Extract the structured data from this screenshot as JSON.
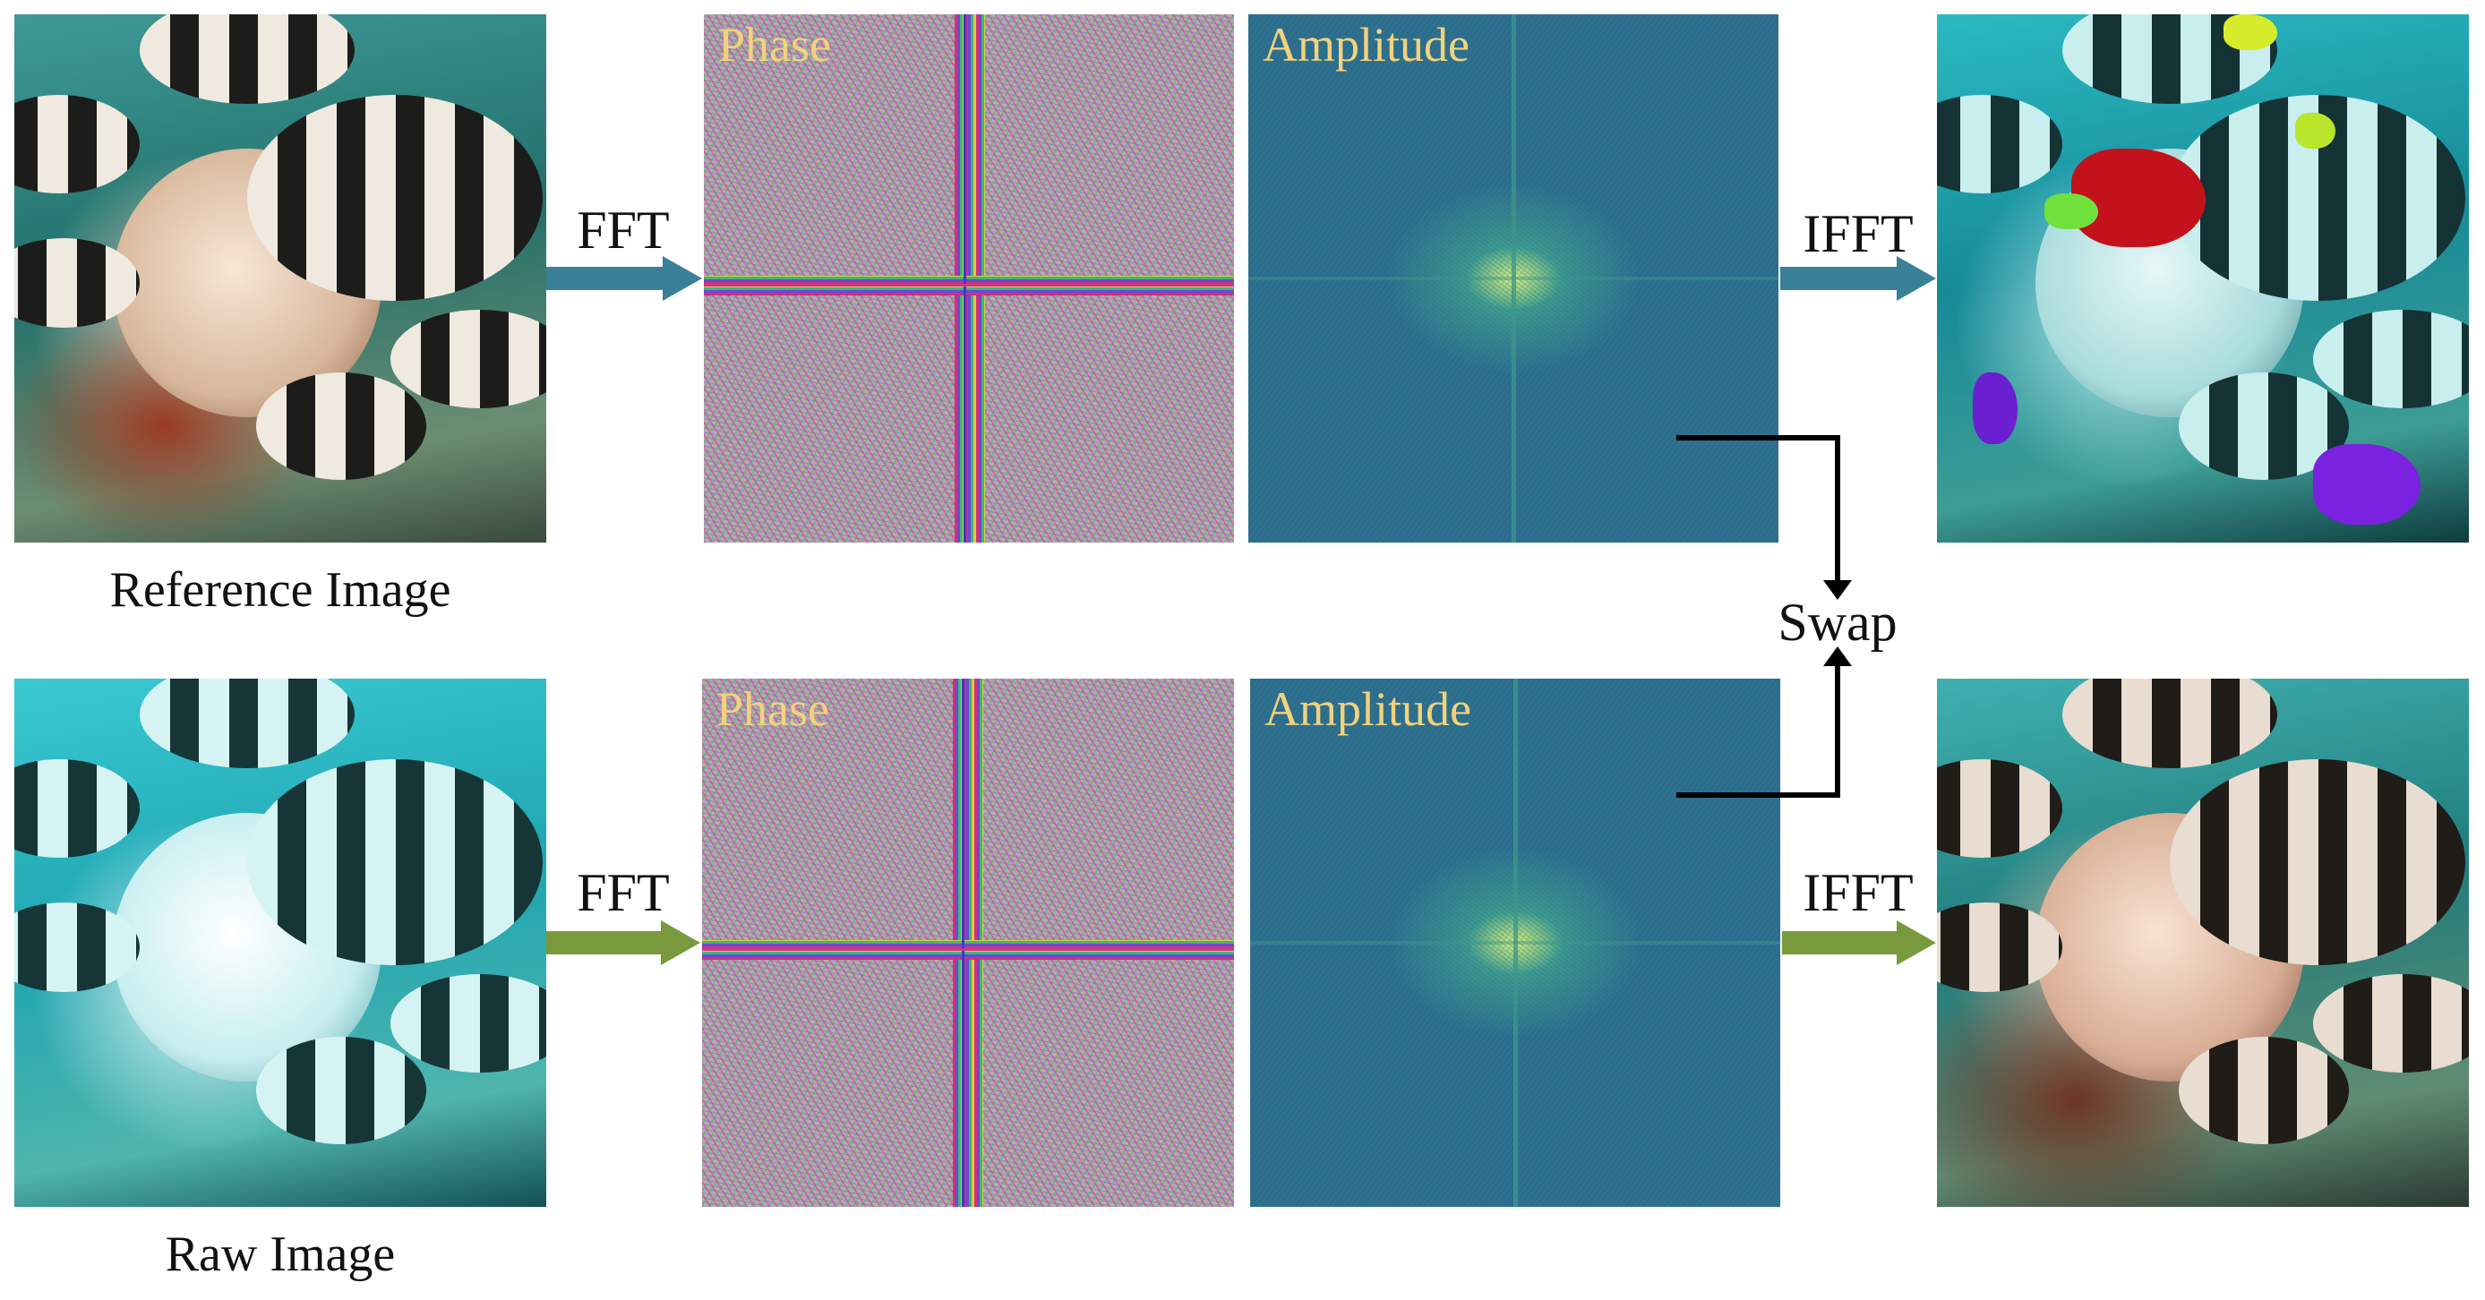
{
  "captions": {
    "reference": "Reference Image",
    "raw": "Raw Image"
  },
  "spectrum_labels": {
    "phase_top": "Phase",
    "amplitude_top": "Amplitude",
    "phase_bottom": "Phase",
    "amplitude_bottom": "Amplitude"
  },
  "arrow_labels": {
    "fft_top": "FFT",
    "ifft_top": "IFFT",
    "fft_bottom": "FFT",
    "ifft_bottom": "IFFT",
    "swap": "Swap"
  },
  "colors": {
    "top_arrow": "#3a8098",
    "bottom_arrow": "#789a3c",
    "swap_line": "#000000",
    "spectrum_label": "#f3d27a"
  }
}
